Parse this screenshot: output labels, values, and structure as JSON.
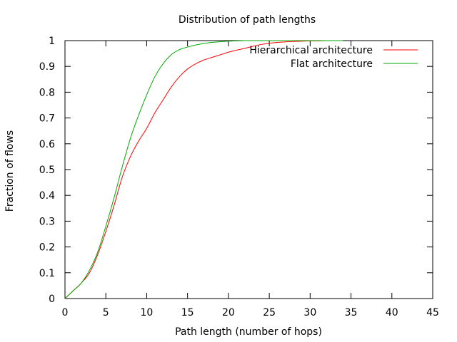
{
  "chart_data": {
    "type": "line",
    "title": "Distribution of path lengths",
    "xlabel": "Path length (number of hops)",
    "ylabel": "Fraction of flows",
    "xlim": [
      0,
      45
    ],
    "ylim": [
      0,
      1
    ],
    "xticks": [
      0,
      5,
      10,
      15,
      20,
      25,
      30,
      35,
      40,
      45
    ],
    "yticks": [
      0,
      0.1,
      0.2,
      0.3,
      0.4,
      0.5,
      0.6,
      0.7,
      0.8,
      0.9,
      1
    ],
    "xtick_labels": [
      "0",
      "5",
      "10",
      "15",
      "20",
      "25",
      "30",
      "35",
      "40",
      "45"
    ],
    "ytick_labels": [
      "0",
      "0.1",
      "0.2",
      "0.3",
      "0.4",
      "0.5",
      "0.6",
      "0.7",
      "0.8",
      "0.9",
      "1"
    ],
    "grid": false,
    "legend_position": "top-right",
    "series": [
      {
        "name": "Hierarchical architecture",
        "color": "#ff0000",
        "x": [
          0,
          1,
          2,
          3,
          4,
          5,
          6,
          7,
          8,
          9,
          10,
          11,
          12,
          13,
          14,
          15,
          16,
          17,
          18,
          19,
          20,
          21,
          22,
          23,
          24,
          25,
          26,
          27,
          28,
          29,
          30,
          31,
          32,
          33,
          34
        ],
        "y": [
          0,
          0.03,
          0.06,
          0.1,
          0.17,
          0.26,
          0.36,
          0.47,
          0.55,
          0.61,
          0.66,
          0.72,
          0.77,
          0.82,
          0.86,
          0.89,
          0.91,
          0.925,
          0.935,
          0.945,
          0.955,
          0.963,
          0.97,
          0.978,
          0.985,
          0.99,
          0.993,
          0.995,
          0.997,
          0.998,
          0.999,
          0.999,
          1,
          1,
          1
        ]
      },
      {
        "name": "Flat architecture",
        "color": "#00aa00",
        "x": [
          0,
          1,
          2,
          3,
          4,
          5,
          6,
          7,
          8,
          9,
          10,
          11,
          12,
          13,
          14,
          15,
          16,
          17,
          18,
          19,
          20,
          21,
          22,
          23,
          24,
          25,
          26,
          27,
          28,
          29,
          30,
          31,
          32,
          33,
          34
        ],
        "y": [
          0,
          0.03,
          0.06,
          0.11,
          0.18,
          0.28,
          0.39,
          0.51,
          0.62,
          0.71,
          0.79,
          0.86,
          0.91,
          0.945,
          0.965,
          0.975,
          0.983,
          0.989,
          0.993,
          0.996,
          0.998,
          0.999,
          1,
          1,
          1,
          1,
          1,
          1,
          1,
          1,
          1,
          1,
          1,
          1,
          1
        ]
      }
    ]
  }
}
